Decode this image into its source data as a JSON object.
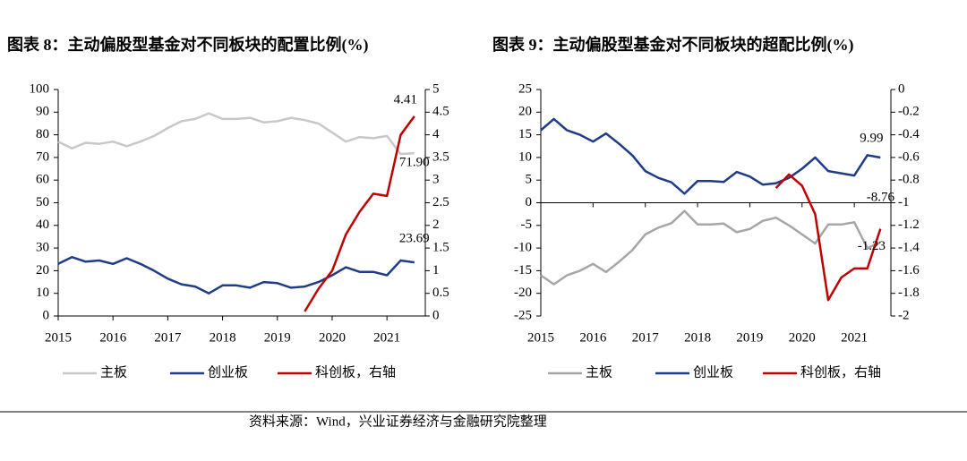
{
  "chart_data": [
    {
      "type": "line",
      "title": "图表 8：主动偏股型基金对不同板块的配置比例(%)",
      "categories": [
        "2015",
        null,
        null,
        null,
        "2016",
        null,
        null,
        null,
        "2017",
        null,
        null,
        null,
        "2018",
        null,
        null,
        null,
        "2019",
        null,
        null,
        null,
        "2020",
        null,
        null,
        null,
        "2021",
        null,
        null
      ],
      "ylim": [
        0,
        100
      ],
      "yticks": [
        0,
        10,
        20,
        30,
        40,
        50,
        60,
        70,
        80,
        90,
        100
      ],
      "y2lim": [
        0,
        5
      ],
      "y2ticks": [
        0,
        0.5,
        1,
        1.5,
        2,
        2.5,
        3,
        3.5,
        4,
        4.5,
        5
      ],
      "series": [
        {
          "name": "主板",
          "color": "#c8c8c8",
          "values": [
            77,
            74,
            76.5,
            76,
            77,
            75,
            77,
            79.5,
            83,
            86,
            87,
            89.5,
            87,
            87,
            87.5,
            85.5,
            86,
            87.5,
            86.5,
            85,
            81,
            77,
            79,
            78.5,
            79.5,
            71.5,
            71.9
          ],
          "value_labels": [
            null,
            null,
            null,
            null,
            null,
            null,
            null,
            null,
            null,
            null,
            null,
            null,
            null,
            null,
            null,
            null,
            null,
            null,
            null,
            null,
            null,
            null,
            null,
            null,
            null,
            null,
            "71.90"
          ]
        },
        {
          "name": "创业板",
          "color": "#1f3c88",
          "values": [
            23,
            26,
            24,
            24.5,
            23,
            25.5,
            23,
            20,
            16.5,
            14,
            13,
            10,
            13.5,
            13.5,
            12.5,
            15,
            14.5,
            12.5,
            13,
            15,
            18,
            21.5,
            19.5,
            19.5,
            18,
            24.5,
            23.69
          ]
        },
        {
          "name": "科创板，右轴",
          "color": "#c00000",
          "axis": "y2",
          "values": [
            null,
            null,
            null,
            null,
            null,
            null,
            null,
            null,
            null,
            null,
            null,
            null,
            null,
            null,
            null,
            null,
            null,
            null,
            0.1,
            0.6,
            1.0,
            1.8,
            2.3,
            2.7,
            2.65,
            4.0,
            4.41
          ]
        }
      ]
    },
    {
      "type": "line",
      "title": "图表 9：主动偏股型基金对不同板块的超配比例(%)",
      "categories": [
        "2015",
        null,
        null,
        null,
        "2016",
        null,
        null,
        null,
        "2017",
        null,
        null,
        null,
        "2018",
        null,
        null,
        null,
        "2019",
        null,
        null,
        null,
        "2020",
        null,
        null,
        null,
        "2021",
        null,
        null
      ],
      "ylim": [
        -25,
        25
      ],
      "yticks": [
        -25,
        -20,
        -15,
        -10,
        -5,
        0,
        5,
        10,
        15,
        20,
        25
      ],
      "y2lim": [
        -2,
        0
      ],
      "y2ticks": [
        -2,
        -1.8,
        -1.6,
        -1.4,
        -1.2,
        -1,
        -0.8,
        -0.6,
        -0.4,
        -0.2,
        0
      ],
      "series": [
        {
          "name": "主板",
          "color": "#a6a6a6",
          "values": [
            -16,
            -18,
            -16,
            -15,
            -13.5,
            -15.3,
            -13,
            -10.5,
            -7,
            -5.5,
            -4.5,
            -1.8,
            -4.8,
            -4.8,
            -4.6,
            -6.5,
            -5.8,
            -4,
            -3.3,
            -5,
            -7,
            -9,
            -4.8,
            -4.8,
            -4.3,
            -10,
            -8.76
          ]
        },
        {
          "name": "创业板",
          "color": "#1f3c88",
          "values": [
            16,
            18.5,
            16,
            15,
            13.5,
            15.3,
            13,
            10.5,
            7,
            5.5,
            4.5,
            2,
            4.8,
            4.8,
            4.6,
            6.8,
            5.8,
            4,
            4.3,
            5.5,
            7.5,
            10,
            7,
            6.5,
            6,
            10.5,
            9.99
          ]
        },
        {
          "name": "科创板，右轴",
          "color": "#c00000",
          "axis": "y2",
          "values": [
            null,
            null,
            null,
            null,
            null,
            null,
            null,
            null,
            null,
            null,
            null,
            null,
            null,
            null,
            null,
            null,
            null,
            null,
            -0.87,
            -0.75,
            -0.85,
            -1.1,
            -1.86,
            -1.66,
            -1.58,
            -1.58,
            -1.23
          ]
        }
      ]
    }
  ],
  "source": "资料来源：Wind，兴业证券经济与金融研究院整理"
}
